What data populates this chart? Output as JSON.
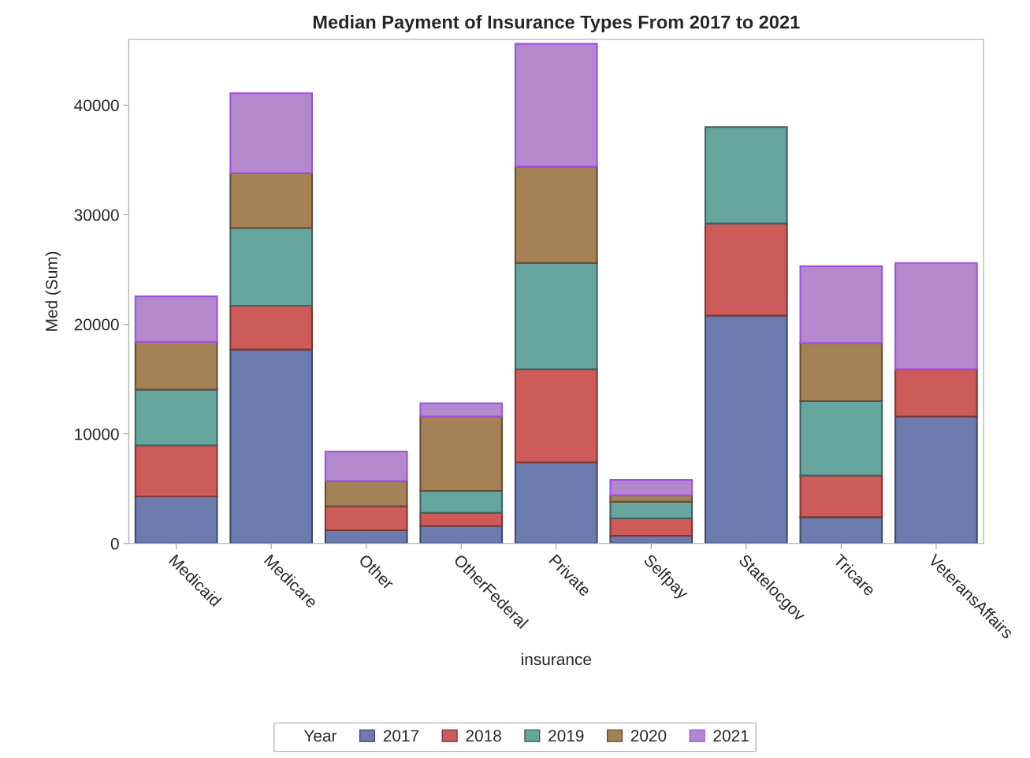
{
  "chart_data": {
    "type": "bar",
    "stacked": true,
    "title": "Median Payment of Insurance Types From 2017 to 2021",
    "xlabel": "insurance",
    "ylabel": "Med (Sum)",
    "legend_title": "Year",
    "legend": "bottom",
    "grid": false,
    "categories": [
      "Medicaid",
      "Medicare",
      "Other",
      "OtherFederal",
      "Private",
      "Selfpay",
      "Statelocgov",
      "Tricare",
      "VeteransAffairs"
    ],
    "ylim": [
      0,
      46000
    ],
    "yticks": [
      0,
      10000,
      20000,
      30000,
      40000
    ],
    "series": [
      {
        "name": "2017",
        "color": "#6b7bae",
        "values": [
          4300,
          17700,
          1200,
          1600,
          7400,
          700,
          20800,
          2400,
          11600
        ]
      },
      {
        "name": "2018",
        "color": "#cd5b59",
        "values": [
          4650,
          4000,
          2200,
          1200,
          8500,
          1600,
          8400,
          3800,
          4300
        ]
      },
      {
        "name": "2019",
        "color": "#66a59d",
        "values": [
          5100,
          7100,
          null,
          2000,
          9700,
          1500,
          8800,
          6800,
          null
        ]
      },
      {
        "name": "2020",
        "color": "#a58256",
        "values": [
          4350,
          5000,
          2300,
          6800,
          8800,
          600,
          null,
          5300,
          null
        ]
      },
      {
        "name": "2021",
        "color": "#b388cc",
        "values": [
          4150,
          7300,
          2700,
          1200,
          11200,
          1400,
          null,
          7000,
          9700
        ]
      }
    ]
  }
}
